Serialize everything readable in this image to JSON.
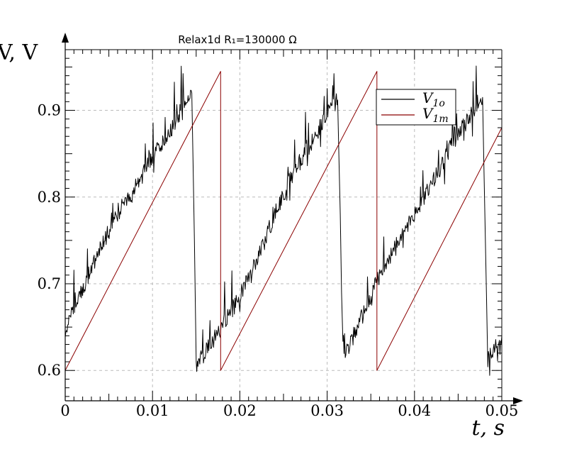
{
  "chart_data": {
    "type": "line",
    "title": "Relax1d R₁=130000 Ω",
    "xlabel": "t,  s",
    "ylabel": "V,  V",
    "xlim": [
      0,
      0.05
    ],
    "ylim": [
      0.565,
      0.97
    ],
    "x_ticks": [
      "0",
      "0.01",
      "0.02",
      "0.03",
      "0.04",
      "0.05"
    ],
    "x_tick_values": [
      0,
      0.01,
      0.02,
      0.03,
      0.04,
      0.05
    ],
    "y_ticks": [
      "0.6",
      "0.7",
      "0.8",
      "0.9"
    ],
    "y_tick_values": [
      0.6,
      0.7,
      0.8,
      0.9
    ],
    "grid": true,
    "legend_position": "top-right",
    "series": [
      {
        "name": "V1o",
        "legend_main": "V",
        "legend_sub": "1o",
        "color": "#000000",
        "noisy": true,
        "x": [
          0,
          0.0005,
          0.002,
          0.004,
          0.006,
          0.008,
          0.01,
          0.012,
          0.0135,
          0.0145,
          0.0148,
          0.015,
          0.017,
          0.02,
          0.022,
          0.024,
          0.026,
          0.028,
          0.03,
          0.0312,
          0.0315,
          0.0318,
          0.032,
          0.034,
          0.036,
          0.038,
          0.04,
          0.042,
          0.044,
          0.046,
          0.047,
          0.0478,
          0.0481,
          0.0484,
          0.05
        ],
        "y": [
          0.648,
          0.662,
          0.695,
          0.74,
          0.78,
          0.812,
          0.845,
          0.875,
          0.905,
          0.92,
          0.75,
          0.605,
          0.635,
          0.685,
          0.73,
          0.78,
          0.825,
          0.86,
          0.895,
          0.912,
          0.78,
          0.6,
          0.615,
          0.665,
          0.71,
          0.745,
          0.78,
          0.815,
          0.855,
          0.888,
          0.905,
          0.915,
          0.76,
          0.612,
          0.64
        ]
      },
      {
        "name": "V1m",
        "legend_main": "V",
        "legend_sub": "1m",
        "color": "#8b0000",
        "noisy": false,
        "x": [
          0,
          0.0178,
          0.0178,
          0.0357,
          0.0357,
          0.05
        ],
        "y": [
          0.6,
          0.945,
          0.6,
          0.945,
          0.6,
          0.88
        ]
      }
    ]
  }
}
